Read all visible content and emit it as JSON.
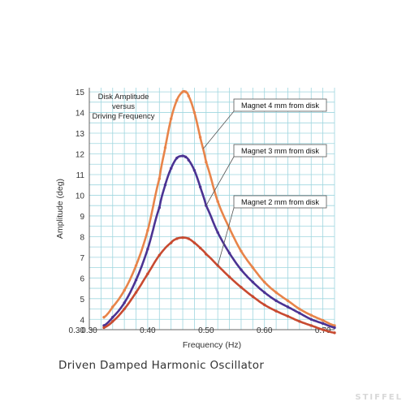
{
  "chart_data": {
    "type": "line",
    "annotation_title_lines": [
      "Disk Amplitude",
      "versus",
      "Driving Frequency"
    ],
    "xlabel": "Frequency (Hz)",
    "ylabel": "Amplitude (deg)",
    "xlim": [
      0.3,
      0.72
    ],
    "ylim": [
      3.5,
      15.2
    ],
    "xticks": [
      {
        "value": 0.3,
        "label": "0.30"
      },
      {
        "value": 0.4,
        "label": "0.40"
      },
      {
        "value": 0.5,
        "label": "0.50"
      },
      {
        "value": 0.6,
        "label": "0.60"
      },
      {
        "value": 0.7,
        "label": "0.70"
      }
    ],
    "x_origin_label": "0.30",
    "yticks": [
      4,
      5,
      6,
      7,
      8,
      9,
      10,
      11,
      12,
      13,
      14,
      15
    ],
    "grid": true,
    "series": [
      {
        "name": "Magnet 4 mm from disk",
        "color": "#E8844A",
        "x": [
          0.325,
          0.34,
          0.36,
          0.38,
          0.4,
          0.42,
          0.43,
          0.44,
          0.45,
          0.46,
          0.465,
          0.47,
          0.48,
          0.49,
          0.5,
          0.52,
          0.54,
          0.56,
          0.58,
          0.6,
          0.62,
          0.64,
          0.66,
          0.68,
          0.7,
          0.72
        ],
        "y": [
          4.1,
          4.6,
          5.4,
          6.6,
          8.3,
          10.8,
          12.3,
          13.7,
          14.6,
          15.0,
          15.0,
          14.8,
          14.0,
          12.8,
          11.6,
          9.7,
          8.4,
          7.3,
          6.5,
          5.8,
          5.3,
          4.9,
          4.5,
          4.2,
          3.95,
          3.7
        ]
      },
      {
        "name": "Magnet 3 mm from disk",
        "color": "#4B3393",
        "x": [
          0.325,
          0.34,
          0.36,
          0.38,
          0.4,
          0.42,
          0.43,
          0.44,
          0.45,
          0.46,
          0.465,
          0.47,
          0.48,
          0.49,
          0.5,
          0.52,
          0.54,
          0.56,
          0.58,
          0.6,
          0.62,
          0.64,
          0.66,
          0.68,
          0.7,
          0.72
        ],
        "y": [
          3.7,
          4.1,
          4.8,
          5.9,
          7.4,
          9.4,
          10.5,
          11.3,
          11.8,
          11.9,
          11.85,
          11.7,
          11.2,
          10.4,
          9.5,
          8.2,
          7.2,
          6.4,
          5.8,
          5.3,
          4.9,
          4.6,
          4.3,
          4.0,
          3.8,
          3.6
        ]
      },
      {
        "name": "Magnet 2 mm from disk",
        "color": "#C84A30",
        "x": [
          0.325,
          0.34,
          0.36,
          0.38,
          0.4,
          0.42,
          0.44,
          0.45,
          0.46,
          0.47,
          0.48,
          0.49,
          0.5,
          0.52,
          0.54,
          0.56,
          0.58,
          0.6,
          0.62,
          0.64,
          0.66,
          0.68,
          0.7,
          0.72
        ],
        "y": [
          3.6,
          3.9,
          4.5,
          5.3,
          6.2,
          7.1,
          7.7,
          7.9,
          7.95,
          7.9,
          7.7,
          7.45,
          7.15,
          6.6,
          6.05,
          5.55,
          5.1,
          4.7,
          4.4,
          4.15,
          3.9,
          3.7,
          3.5,
          3.35
        ]
      }
    ],
    "legend_labels": [
      {
        "text": "Magnet 4 mm from disk",
        "series": 0,
        "point_x": 0.495
      },
      {
        "text": "Magnet 3 mm from disk",
        "series": 1,
        "point_x": 0.5
      },
      {
        "text": "Magnet 2 mm from disk",
        "series": 2,
        "point_x": 0.52
      }
    ]
  },
  "caption": "Driven Damped Harmonic Oscillator",
  "watermark": "STIFFEL"
}
